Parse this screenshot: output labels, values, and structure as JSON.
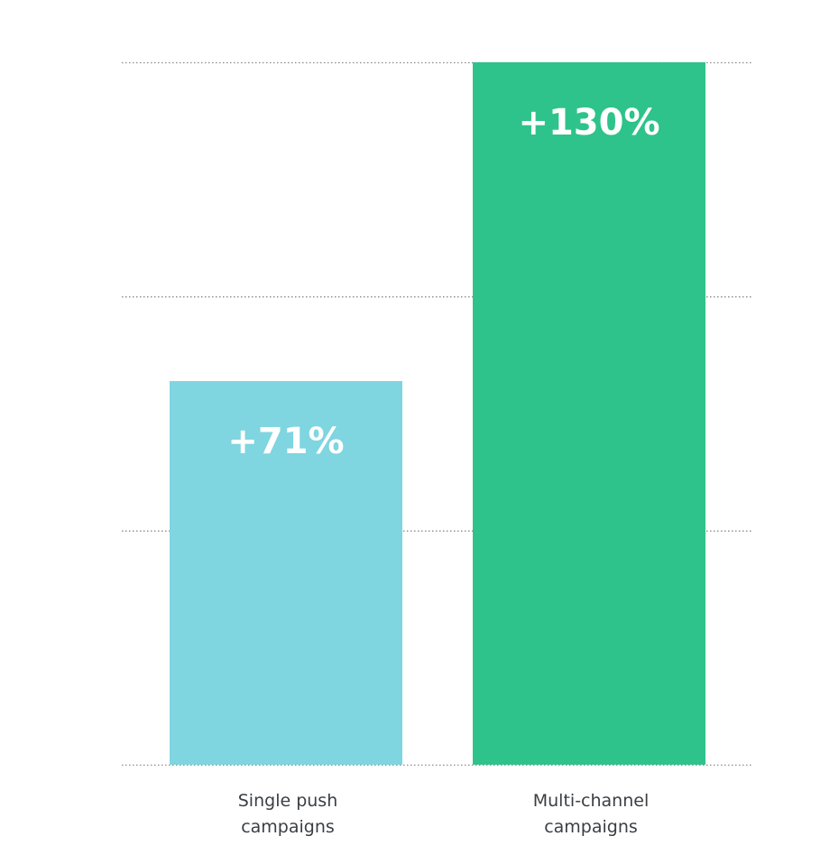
{
  "chart_data": {
    "type": "bar",
    "categories": [
      [
        "Single push",
        "campaigns"
      ],
      [
        "Multi-channel",
        "campaigns"
      ]
    ],
    "values": [
      71,
      130
    ],
    "data_labels": [
      "+71%",
      "+130%"
    ],
    "colors": [
      "#7fd5e0",
      "#2ec38a"
    ],
    "title": "",
    "xlabel": "",
    "ylabel": "",
    "ylim": [
      0,
      130
    ],
    "grid": true,
    "gridlines": [
      0,
      43.33,
      86.67,
      130
    ],
    "legend": "none"
  }
}
